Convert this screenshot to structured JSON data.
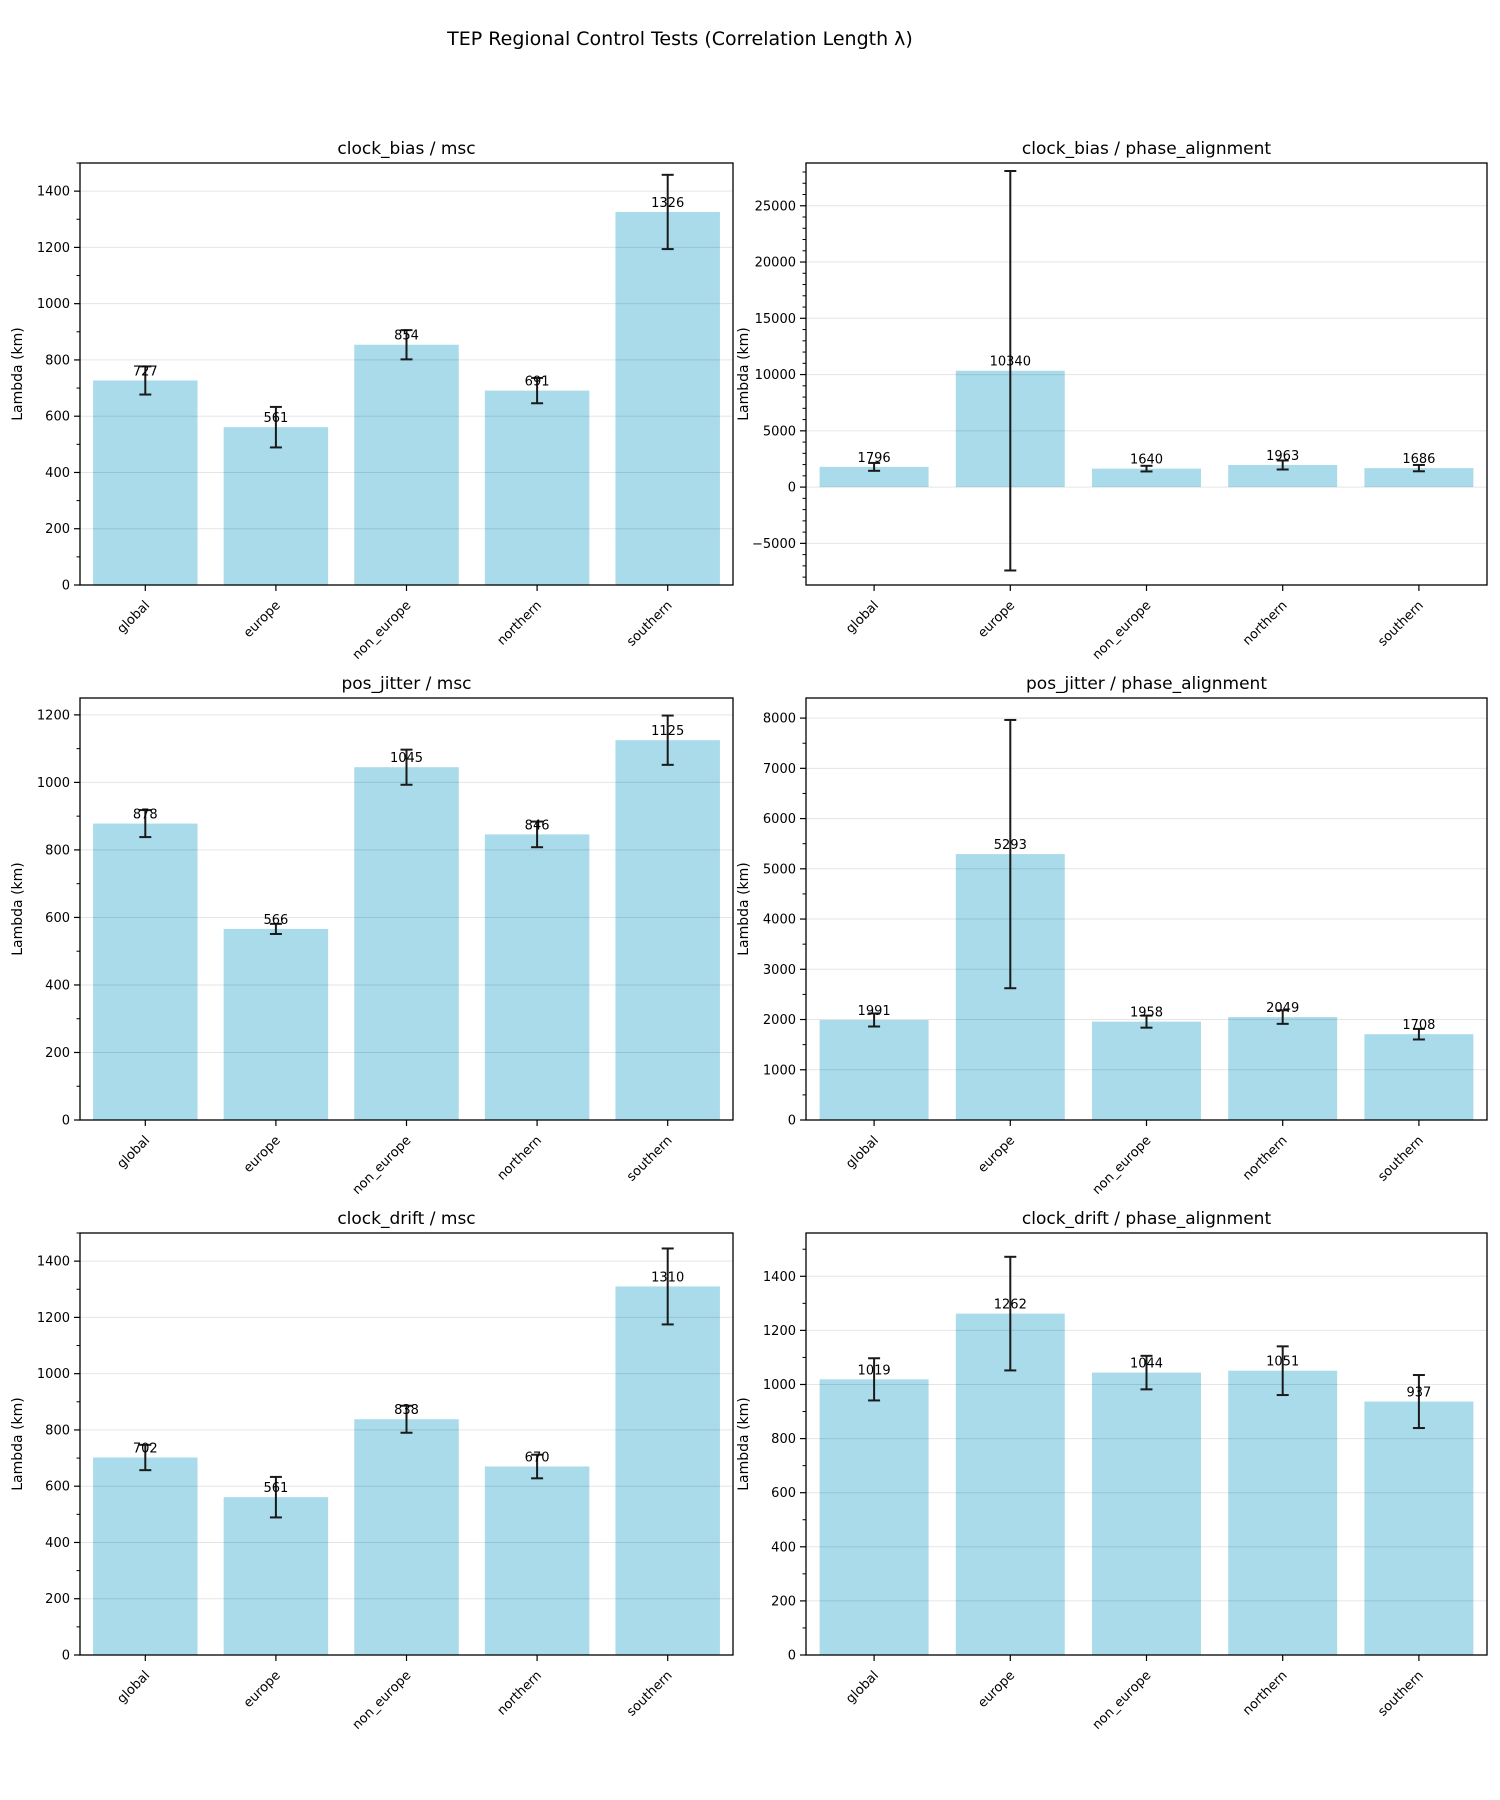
{
  "page_title": "TEP Regional Control Tests (Correlation Length λ)",
  "colors": {
    "bar": "#a9dbea",
    "error_bar": "#1a1a1a",
    "grid": "rgba(0,0,0,0.10)",
    "spine": "#000000"
  },
  "chart_data": [
    {
      "type": "bar",
      "title": "clock_bias / msc",
      "ylabel": "Lambda (km)",
      "categories": [
        "global",
        "europe",
        "non_europe",
        "northern",
        "southern"
      ],
      "values": [
        727,
        561,
        854,
        691,
        1326
      ],
      "errors": [
        50,
        72,
        52,
        45,
        132
      ],
      "ylim": [
        0,
        1500
      ],
      "yticks": [
        0,
        200,
        400,
        600,
        800,
        1000,
        1200,
        1400
      ],
      "grid": true,
      "legend": false
    },
    {
      "type": "bar",
      "title": "clock_bias / phase_alignment",
      "ylabel": "Lambda (km)",
      "categories": [
        "global",
        "europe",
        "non_europe",
        "northern",
        "southern"
      ],
      "values": [
        1796,
        10340,
        1640,
        1963,
        1686
      ],
      "errors": [
        350,
        17750,
        250,
        400,
        280
      ],
      "ylim": [
        -8700,
        28800
      ],
      "yticks": [
        -5000,
        0,
        5000,
        10000,
        15000,
        20000,
        25000
      ],
      "grid": true,
      "legend": false
    },
    {
      "type": "bar",
      "title": "pos_jitter / msc",
      "ylabel": "Lambda (km)",
      "categories": [
        "global",
        "europe",
        "non_europe",
        "northern",
        "southern"
      ],
      "values": [
        878,
        566,
        1045,
        846,
        1125
      ],
      "errors": [
        40,
        15,
        52,
        38,
        73
      ],
      "ylim": [
        0,
        1250
      ],
      "yticks": [
        0,
        200,
        400,
        600,
        800,
        1000,
        1200
      ],
      "grid": true,
      "legend": false
    },
    {
      "type": "bar",
      "title": "pos_jitter / phase_alignment",
      "ylabel": "Lambda (km)",
      "categories": [
        "global",
        "europe",
        "non_europe",
        "northern",
        "southern"
      ],
      "values": [
        1991,
        5293,
        1958,
        2049,
        1708
      ],
      "errors": [
        130,
        2670,
        120,
        135,
        105
      ],
      "ylim": [
        0,
        8400
      ],
      "yticks": [
        0,
        1000,
        2000,
        3000,
        4000,
        5000,
        6000,
        7000,
        8000
      ],
      "grid": true,
      "legend": false
    },
    {
      "type": "bar",
      "title": "clock_drift / msc",
      "ylabel": "Lambda (km)",
      "categories": [
        "global",
        "europe",
        "non_europe",
        "northern",
        "southern"
      ],
      "values": [
        702,
        561,
        838,
        670,
        1310
      ],
      "errors": [
        45,
        72,
        48,
        42,
        135
      ],
      "ylim": [
        0,
        1500
      ],
      "yticks": [
        0,
        200,
        400,
        600,
        800,
        1000,
        1200,
        1400
      ],
      "grid": true,
      "legend": false
    },
    {
      "type": "bar",
      "title": "clock_drift / phase_alignment",
      "ylabel": "Lambda (km)",
      "categories": [
        "global",
        "europe",
        "non_europe",
        "northern",
        "southern"
      ],
      "values": [
        1019,
        1262,
        1044,
        1051,
        937
      ],
      "errors": [
        78,
        210,
        62,
        90,
        98
      ],
      "ylim": [
        0,
        1560
      ],
      "yticks": [
        0,
        200,
        400,
        600,
        800,
        1000,
        1200,
        1400
      ],
      "grid": true,
      "legend": false
    }
  ]
}
